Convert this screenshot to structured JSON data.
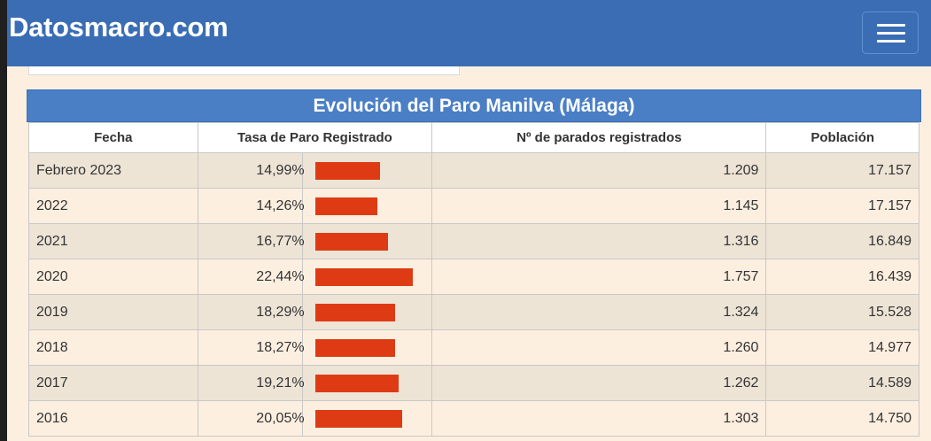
{
  "header": {
    "logo": "Datosmacro.com",
    "menu_icon": "hamburger-menu-icon",
    "background_color": "#3a6db3"
  },
  "table": {
    "caption": "Evolución del Paro Manilva (Málaga)",
    "columns": [
      "Fecha",
      "Tasa de Paro Registrado",
      "Nº de parados registrados",
      "Población"
    ],
    "bar_color": "#de3b14",
    "bar_max_value": 22.44,
    "rows": [
      {
        "fecha": "Febrero 2023",
        "tasa": "14,99%",
        "tasa_value": 14.99,
        "parados": "1.209",
        "poblacion": "17.157"
      },
      {
        "fecha": "2022",
        "tasa": "14,26%",
        "tasa_value": 14.26,
        "parados": "1.145",
        "poblacion": "17.157"
      },
      {
        "fecha": "2021",
        "tasa": "16,77%",
        "tasa_value": 16.77,
        "parados": "1.316",
        "poblacion": "16.849"
      },
      {
        "fecha": "2020",
        "tasa": "22,44%",
        "tasa_value": 22.44,
        "parados": "1.757",
        "poblacion": "16.439"
      },
      {
        "fecha": "2019",
        "tasa": "18,29%",
        "tasa_value": 18.29,
        "parados": "1.324",
        "poblacion": "15.528"
      },
      {
        "fecha": "2018",
        "tasa": "18,27%",
        "tasa_value": 18.27,
        "parados": "1.260",
        "poblacion": "14.977"
      },
      {
        "fecha": "2017",
        "tasa": "19,21%",
        "tasa_value": 19.21,
        "parados": "1.262",
        "poblacion": "14.589"
      },
      {
        "fecha": "2016",
        "tasa": "20,05%",
        "tasa_value": 20.05,
        "parados": "1.303",
        "poblacion": "14.750"
      }
    ]
  }
}
